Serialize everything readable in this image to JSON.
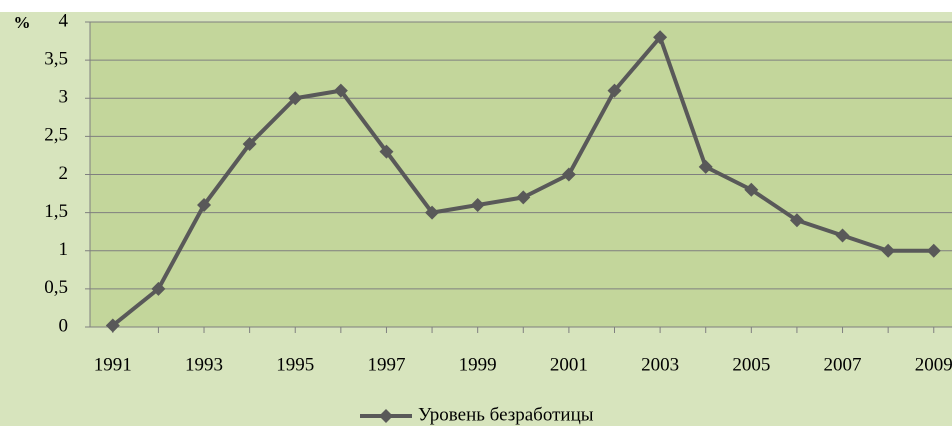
{
  "chart_data": {
    "type": "line",
    "y_unit": "%",
    "x": [
      1991,
      1992,
      1993,
      1994,
      1995,
      1996,
      1997,
      1998,
      1999,
      2000,
      2001,
      2002,
      2003,
      2004,
      2005,
      2006,
      2007,
      2008,
      2009
    ],
    "series": [
      {
        "name": "Уровень безработицы",
        "color": "#595959",
        "values": [
          0.02,
          0.5,
          1.6,
          2.4,
          3.0,
          3.1,
          2.3,
          1.5,
          1.6,
          1.7,
          2.0,
          3.1,
          3.8,
          2.1,
          1.8,
          1.4,
          1.2,
          1.0,
          1.0
        ]
      }
    ],
    "xlim": [
      1990.5,
      2009.4
    ],
    "xticks": [
      1991,
      1993,
      1995,
      1997,
      1999,
      2001,
      2003,
      2005,
      2007,
      2009
    ],
    "ylim": [
      0,
      4
    ],
    "yticks": [
      0,
      {
        "value": 0.5,
        "label": "0,5"
      },
      1,
      {
        "value": 1.5,
        "label": "1,5"
      },
      2,
      {
        "value": 2.5,
        "label": "2,5"
      },
      3,
      {
        "value": 3.5,
        "label": "3,5"
      },
      4
    ],
    "grid": true,
    "legend": "bottom"
  }
}
